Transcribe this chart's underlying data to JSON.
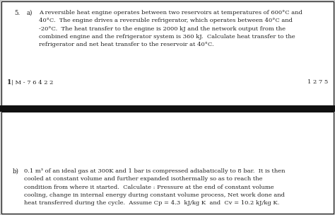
{
  "background_color": "#c8c8c8",
  "top_box_color": "#ffffff",
  "bottom_box_color": "#ffffff",
  "divider_color": "#111111",
  "border_color": "#111111",
  "text_color": "#222222",
  "question_number": "5.",
  "part_a_label": "a)",
  "part_a_text": "A reversible heat engine operates between two reservoirs at temperatures of 600°C and\n40°C.  The engine drives a reversible refrigerator, which operates between 40°C and\n-20°C.  The heat transfer to the engine is 2000 kJ and the network output from the\ncombined engine and the refrigerator system is 360 kJ.  Calculate heat transfer to the\nrefrigerator and net heat transfer to the reservoir at 40°C.",
  "footer_left": "1 | M - 7 6 4 2 2",
  "footer_right": "1 2 7 5",
  "part_b_label": "b)",
  "part_b_text": "0.1 m³ of an ideal gas at 300K and 1 bar is compressed adiabatically to 8 bar.  It is then\ncooled at constant volume and further expanded isothermally so as to reach the\ncondition from where it started.  Calculate : Pressure at the end of constant volume\ncooling, change in internal energy during constant volume process, Net work done and\nheat transferred during the cycle.  Assume Cp = 4.3  kJ/kg K  and  Cv = 10.2 kJ/kg K.",
  "fig_width": 4.74,
  "fig_height": 3.04,
  "dpi": 100
}
